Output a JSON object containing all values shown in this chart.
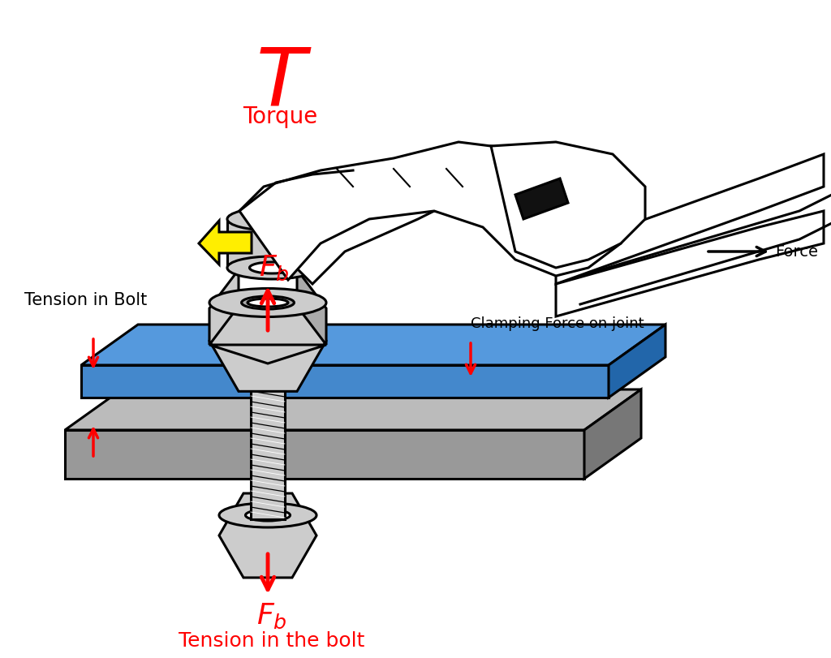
{
  "background_color": "#ffffff",
  "title_T": "$\\mathit{T}$",
  "title_torque": "Torque",
  "label_tension_bolt": "Tension in Bolt",
  "label_tension_bolt_bottom": "Tension in the bolt",
  "label_clamping": "Clamping Force on joint",
  "label_force": "Force",
  "red_color": "#ff0000",
  "black_color": "#000000",
  "blue_color": "#4499cc",
  "yellow_color": "#ffee00",
  "white_color": "#ffffff",
  "light_gray": "#cccccc",
  "mid_gray": "#aaaaaa",
  "dark_gray": "#888888",
  "plate_gray_top": "#bbbbbb",
  "plate_gray_side": "#999999",
  "plate_gray_dark": "#777777"
}
